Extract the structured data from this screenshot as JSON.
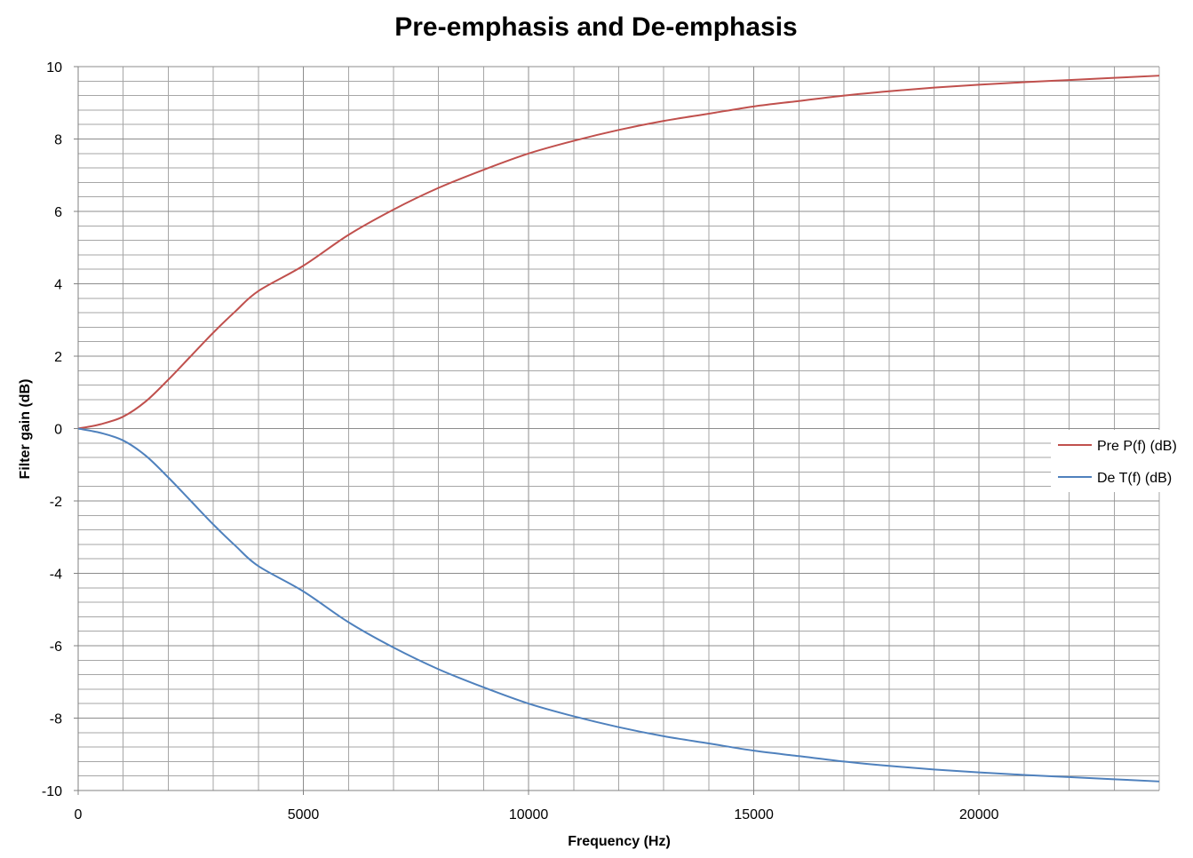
{
  "chart_data": {
    "type": "line",
    "title": "Pre-emphasis and De-emphasis",
    "xlabel": "Frequency (Hz)",
    "ylabel": "Filter gain (dB)",
    "xlim": [
      0,
      24000
    ],
    "ylim": [
      -10,
      10
    ],
    "x_ticks": [
      0,
      5000,
      10000,
      15000,
      20000
    ],
    "x_tick_labels": [
      "0",
      "5000",
      "10000",
      "15000",
      "20000"
    ],
    "y_ticks": [
      -10,
      -8,
      -6,
      -4,
      -2,
      0,
      2,
      4,
      6,
      8,
      10
    ],
    "y_tick_labels": [
      "-10",
      "-8",
      "-6",
      "-4",
      "-2",
      "0",
      "2",
      "4",
      "6",
      "8",
      "10"
    ],
    "grid": true,
    "x_minor_step": 1000,
    "y_minor_step": 0.4,
    "legend_position": "right",
    "x": [
      0,
      500,
      1000,
      1500,
      2000,
      2500,
      3000,
      3500,
      4000,
      5000,
      6000,
      7000,
      8000,
      9000,
      10000,
      11000,
      12000,
      13000,
      14000,
      15000,
      16000,
      17000,
      18000,
      19000,
      20000,
      21000,
      22000,
      23000,
      24000
    ],
    "series": [
      {
        "name": "Pre P(f) (dB)",
        "color": "#C0504D",
        "values": [
          0,
          0.12,
          0.33,
          0.75,
          1.35,
          2.0,
          2.65,
          3.25,
          3.8,
          4.5,
          5.35,
          6.05,
          6.65,
          7.15,
          7.6,
          7.95,
          8.25,
          8.5,
          8.7,
          8.9,
          9.05,
          9.2,
          9.32,
          9.42,
          9.5,
          9.57,
          9.63,
          9.69,
          9.75
        ]
      },
      {
        "name": "De T(f) (dB)",
        "color": "#4F81BD",
        "values": [
          0,
          -0.12,
          -0.33,
          -0.75,
          -1.35,
          -2.0,
          -2.65,
          -3.25,
          -3.8,
          -4.5,
          -5.35,
          -6.05,
          -6.65,
          -7.15,
          -7.6,
          -7.95,
          -8.25,
          -8.5,
          -8.7,
          -8.9,
          -9.05,
          -9.2,
          -9.32,
          -9.42,
          -9.5,
          -9.57,
          -9.63,
          -9.69,
          -9.75
        ]
      }
    ]
  }
}
